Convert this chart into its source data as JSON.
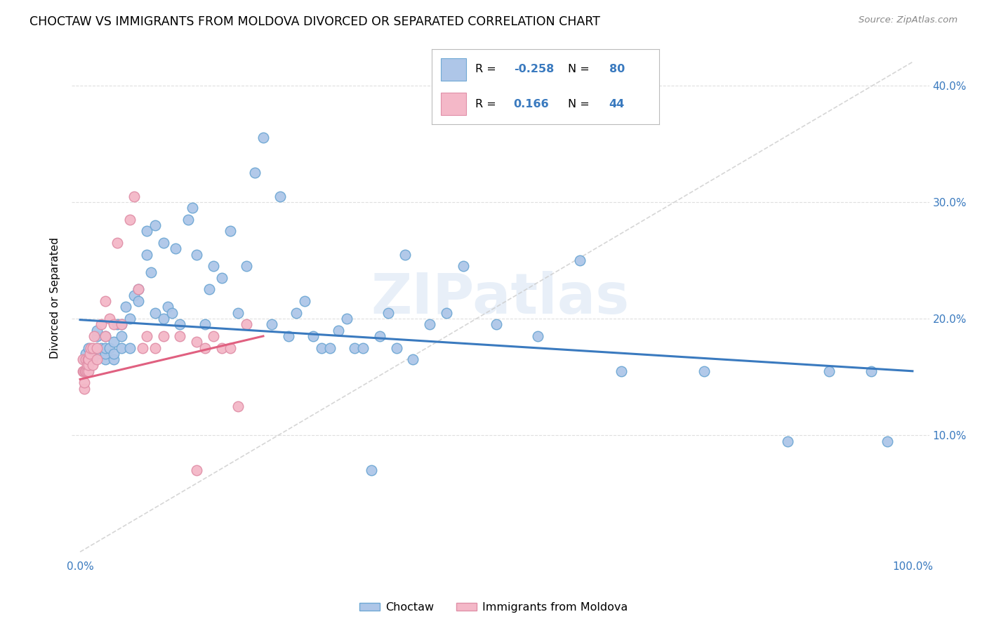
{
  "title": "CHOCTAW VS IMMIGRANTS FROM MOLDOVA DIVORCED OR SEPARATED CORRELATION CHART",
  "source": "Source: ZipAtlas.com",
  "ylabel": "Divorced or Separated",
  "watermark": "ZIPatlas",
  "legend_bottom": [
    "Choctaw",
    "Immigrants from Moldova"
  ],
  "choctaw_color": "#aec6e8",
  "moldova_color": "#f4b8c8",
  "choctaw_edge": "#6fa8d4",
  "moldova_edge": "#e090a8",
  "blue_line_color": "#3a7abf",
  "pink_line_color": "#e06080",
  "diag_line_color": "#cccccc",
  "xlim": [
    0.0,
    1.0
  ],
  "ylim": [
    0.0,
    0.42
  ],
  "blue_line": [
    0.0,
    0.199,
    1.0,
    0.155
  ],
  "pink_line": [
    0.0,
    0.148,
    0.22,
    0.185
  ],
  "choctaw_x": [
    0.005,
    0.007,
    0.01,
    0.015,
    0.02,
    0.02,
    0.02,
    0.025,
    0.025,
    0.03,
    0.03,
    0.03,
    0.03,
    0.035,
    0.04,
    0.04,
    0.04,
    0.045,
    0.05,
    0.05,
    0.05,
    0.055,
    0.06,
    0.06,
    0.065,
    0.07,
    0.07,
    0.08,
    0.08,
    0.085,
    0.09,
    0.09,
    0.1,
    0.1,
    0.105,
    0.11,
    0.115,
    0.12,
    0.13,
    0.135,
    0.14,
    0.15,
    0.155,
    0.16,
    0.17,
    0.18,
    0.19,
    0.2,
    0.21,
    0.22,
    0.23,
    0.24,
    0.25,
    0.26,
    0.27,
    0.28,
    0.29,
    0.3,
    0.31,
    0.32,
    0.33,
    0.34,
    0.35,
    0.36,
    0.37,
    0.38,
    0.39,
    0.4,
    0.42,
    0.44,
    0.46,
    0.5,
    0.55,
    0.6,
    0.65,
    0.75,
    0.85,
    0.9,
    0.95,
    0.97
  ],
  "choctaw_y": [
    0.165,
    0.17,
    0.175,
    0.165,
    0.175,
    0.185,
    0.19,
    0.17,
    0.175,
    0.165,
    0.17,
    0.175,
    0.185,
    0.175,
    0.165,
    0.17,
    0.18,
    0.195,
    0.175,
    0.185,
    0.195,
    0.21,
    0.2,
    0.175,
    0.22,
    0.215,
    0.225,
    0.255,
    0.275,
    0.24,
    0.28,
    0.205,
    0.265,
    0.2,
    0.21,
    0.205,
    0.26,
    0.195,
    0.285,
    0.295,
    0.255,
    0.195,
    0.225,
    0.245,
    0.235,
    0.275,
    0.205,
    0.245,
    0.325,
    0.355,
    0.195,
    0.305,
    0.185,
    0.205,
    0.215,
    0.185,
    0.175,
    0.175,
    0.19,
    0.2,
    0.175,
    0.175,
    0.07,
    0.185,
    0.205,
    0.175,
    0.255,
    0.165,
    0.195,
    0.205,
    0.245,
    0.195,
    0.185,
    0.25,
    0.155,
    0.155,
    0.095,
    0.155,
    0.155,
    0.095
  ],
  "moldova_x": [
    0.003,
    0.003,
    0.004,
    0.005,
    0.005,
    0.006,
    0.007,
    0.007,
    0.008,
    0.008,
    0.009,
    0.01,
    0.01,
    0.01,
    0.012,
    0.013,
    0.015,
    0.015,
    0.017,
    0.02,
    0.02,
    0.025,
    0.03,
    0.03,
    0.035,
    0.04,
    0.045,
    0.05,
    0.06,
    0.065,
    0.07,
    0.075,
    0.08,
    0.09,
    0.1,
    0.12,
    0.14,
    0.15,
    0.16,
    0.17,
    0.18,
    0.19,
    0.2,
    0.14
  ],
  "moldova_y": [
    0.155,
    0.165,
    0.155,
    0.14,
    0.145,
    0.155,
    0.155,
    0.165,
    0.155,
    0.16,
    0.165,
    0.155,
    0.16,
    0.165,
    0.17,
    0.175,
    0.16,
    0.175,
    0.185,
    0.165,
    0.175,
    0.195,
    0.185,
    0.215,
    0.2,
    0.195,
    0.265,
    0.195,
    0.285,
    0.305,
    0.225,
    0.175,
    0.185,
    0.175,
    0.185,
    0.185,
    0.18,
    0.175,
    0.185,
    0.175,
    0.175,
    0.125,
    0.195,
    0.07
  ]
}
